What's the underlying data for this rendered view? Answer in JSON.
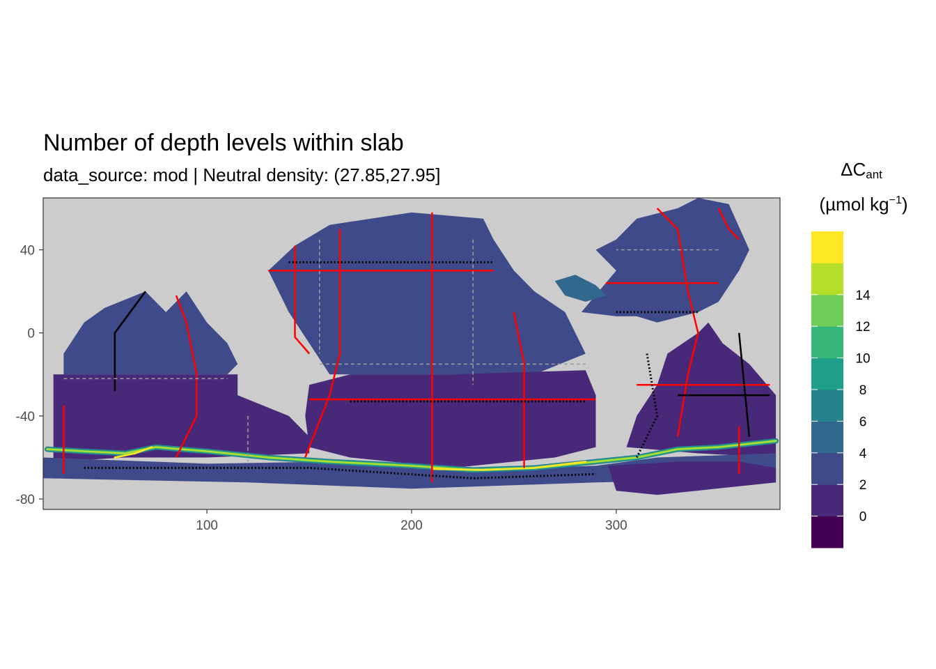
{
  "title": "Number of depth levels within slab",
  "subtitle": "data_source: mod | Neutral density: (27.85,27.95]",
  "legend": {
    "title_main": "ΔC",
    "title_sub": "ant",
    "unit_open": "(µmol kg",
    "unit_sup": "−1",
    "unit_close": ")"
  },
  "colors": {
    "land": "#cccccc",
    "panel_background": "#ffffff",
    "section_red": "#ff0000",
    "section_black": "#000000",
    "section_grey": "#9b9b9b"
  },
  "chart_data": {
    "type": "heatmap",
    "title": "Number of depth levels within slab",
    "subtitle": "data_source: mod | Neutral density: (27.85,27.95]",
    "x_axis": {
      "ticks": [
        100,
        200,
        300
      ],
      "range": [
        20,
        380
      ]
    },
    "y_axis": {
      "ticks": [
        40,
        0,
        -40,
        -80
      ],
      "range": [
        -85,
        65
      ]
    },
    "color_scale": {
      "palette": "viridis",
      "tick_labels": [
        "0",
        "2",
        "4",
        "6",
        "8",
        "10",
        "12",
        "14"
      ],
      "bins": [
        {
          "lower": -2,
          "upper": 0,
          "color": "#440154"
        },
        {
          "lower": 0,
          "upper": 2,
          "color": "#482878"
        },
        {
          "lower": 2,
          "upper": 4,
          "color": "#3e4a89"
        },
        {
          "lower": 4,
          "upper": 6,
          "color": "#31688e"
        },
        {
          "lower": 6,
          "upper": 8,
          "color": "#26828e"
        },
        {
          "lower": 8,
          "upper": 10,
          "color": "#1f9e89"
        },
        {
          "lower": 10,
          "upper": 12,
          "color": "#35b779"
        },
        {
          "lower": 12,
          "upper": 14,
          "color": "#6ece58"
        },
        {
          "lower": 14,
          "upper": 16,
          "color": "#b5de2b"
        },
        {
          "lower": 16,
          "upper": 18,
          "color": "#fde725"
        }
      ]
    },
    "regions": [
      {
        "name": "north-pacific",
        "color": "#3e4a89",
        "poly": [
          [
            143,
            42
          ],
          [
            160,
            52
          ],
          [
            200,
            58
          ],
          [
            235,
            55
          ],
          [
            240,
            45
          ],
          [
            250,
            30
          ],
          [
            260,
            20
          ],
          [
            275,
            10
          ],
          [
            280,
            0
          ],
          [
            285,
            -10
          ],
          [
            260,
            -20
          ],
          [
            200,
            -20
          ],
          [
            160,
            -20
          ],
          [
            150,
            -5
          ],
          [
            140,
            10
          ],
          [
            130,
            30
          ]
        ]
      },
      {
        "name": "south-pacific",
        "color": "#482878",
        "poly": [
          [
            150,
            -25
          ],
          [
            170,
            -20
          ],
          [
            220,
            -20
          ],
          [
            285,
            -18
          ],
          [
            290,
            -30
          ],
          [
            290,
            -55
          ],
          [
            270,
            -60
          ],
          [
            220,
            -65
          ],
          [
            170,
            -60
          ],
          [
            150,
            -55
          ],
          [
            148,
            -40
          ]
        ]
      },
      {
        "name": "indian-north",
        "color": "#3e4a89",
        "poly": [
          [
            30,
            -10
          ],
          [
            40,
            5
          ],
          [
            50,
            12
          ],
          [
            70,
            20
          ],
          [
            80,
            10
          ],
          [
            90,
            20
          ],
          [
            100,
            5
          ],
          [
            110,
            -5
          ],
          [
            115,
            -15
          ],
          [
            110,
            -20
          ],
          [
            60,
            -20
          ],
          [
            30,
            -20
          ]
        ]
      },
      {
        "name": "indian-south",
        "color": "#482878",
        "poly": [
          [
            25,
            -20
          ],
          [
            115,
            -20
          ],
          [
            115,
            -30
          ],
          [
            140,
            -40
          ],
          [
            150,
            -50
          ],
          [
            150,
            -58
          ],
          [
            100,
            -60
          ],
          [
            60,
            -60
          ],
          [
            25,
            -62
          ]
        ]
      },
      {
        "name": "north-atlantic",
        "color": "#3e4a89",
        "poly": [
          [
            283,
            10
          ],
          [
            300,
            30
          ],
          [
            290,
            40
          ],
          [
            300,
            45
          ],
          [
            310,
            55
          ],
          [
            330,
            60
          ],
          [
            340,
            65
          ],
          [
            355,
            62
          ],
          [
            365,
            40
          ],
          [
            360,
            30
          ],
          [
            350,
            15
          ],
          [
            340,
            10
          ],
          [
            320,
            5
          ],
          [
            310,
            8
          ],
          [
            300,
            8
          ]
        ]
      },
      {
        "name": "caribbean",
        "color": "#31688e",
        "poly": [
          [
            270,
            25
          ],
          [
            280,
            28
          ],
          [
            290,
            23
          ],
          [
            295,
            18
          ],
          [
            285,
            15
          ],
          [
            275,
            18
          ]
        ]
      },
      {
        "name": "south-atlantic",
        "color": "#482878",
        "poly": [
          [
            325,
            -10
          ],
          [
            340,
            0
          ],
          [
            345,
            5
          ],
          [
            352,
            -5
          ],
          [
            365,
            -15
          ],
          [
            378,
            -30
          ],
          [
            378,
            -60
          ],
          [
            340,
            -58
          ],
          [
            305,
            -55
          ],
          [
            310,
            -40
          ],
          [
            320,
            -25
          ]
        ]
      },
      {
        "name": "southern-ocean",
        "color": "#3e4a89",
        "poly": [
          [
            20,
            -60
          ],
          [
            100,
            -63
          ],
          [
            160,
            -62
          ],
          [
            230,
            -66
          ],
          [
            290,
            -64
          ],
          [
            320,
            -60
          ],
          [
            378,
            -58
          ],
          [
            378,
            -70
          ],
          [
            290,
            -72
          ],
          [
            200,
            -75
          ],
          [
            120,
            -72
          ],
          [
            20,
            -70
          ]
        ]
      },
      {
        "name": "weddell",
        "color": "#482878",
        "poly": [
          [
            296,
            -64
          ],
          [
            330,
            -62
          ],
          [
            360,
            -62
          ],
          [
            378,
            -65
          ],
          [
            378,
            -72
          ],
          [
            320,
            -78
          ],
          [
            300,
            -76
          ]
        ]
      }
    ],
    "band": {
      "name": "acc-high-band",
      "points": [
        [
          22,
          -56
        ],
        [
          40,
          -57
        ],
        [
          60,
          -58
        ],
        [
          75,
          -55
        ],
        [
          100,
          -57
        ],
        [
          130,
          -60
        ],
        [
          160,
          -62
        ],
        [
          200,
          -64
        ],
        [
          230,
          -66
        ],
        [
          260,
          -65
        ],
        [
          290,
          -62
        ],
        [
          310,
          -60
        ],
        [
          330,
          -56
        ],
        [
          350,
          -55
        ],
        [
          378,
          -52
        ]
      ],
      "layers": [
        {
          "color": "#26828e",
          "width": 2.6
        },
        {
          "color": "#35b779",
          "width": 1.5
        },
        {
          "color": "#b5de2b",
          "width": 0.8
        }
      ],
      "peak_segments": [
        {
          "color": "#fde725",
          "points": [
            [
              210,
              -65.5
            ],
            [
              235,
              -66
            ],
            [
              260,
              -65
            ],
            [
              285,
              -62
            ]
          ]
        },
        {
          "color": "#fde725",
          "points": [
            [
              55,
              -60
            ],
            [
              65,
              -58
            ],
            [
              73,
              -55
            ]
          ]
        }
      ]
    },
    "sections": [
      {
        "color": "#ff0000",
        "style": "solid",
        "points": [
          [
            210,
            58
          ],
          [
            210,
            -72
          ]
        ]
      },
      {
        "color": "#ff0000",
        "style": "solid",
        "points": [
          [
            165,
            50
          ],
          [
            165,
            -10
          ],
          [
            160,
            -30
          ],
          [
            148,
            -60
          ]
        ]
      },
      {
        "color": "#ff0000",
        "style": "solid",
        "points": [
          [
            150,
            -32
          ],
          [
            210,
            -32
          ],
          [
            290,
            -32
          ]
        ]
      },
      {
        "color": "#ff0000",
        "style": "solid",
        "points": [
          [
            130,
            30
          ],
          [
            200,
            30
          ],
          [
            240,
            30
          ]
        ]
      },
      {
        "color": "#ff0000",
        "style": "solid",
        "points": [
          [
            250,
            10
          ],
          [
            255,
            -15
          ],
          [
            255,
            -65
          ]
        ]
      },
      {
        "color": "#ff0000",
        "style": "solid",
        "points": [
          [
            85,
            18
          ],
          [
            90,
            5
          ],
          [
            95,
            -20
          ],
          [
            95,
            -40
          ],
          [
            85,
            -60
          ]
        ]
      },
      {
        "color": "#ff0000",
        "style": "solid",
        "points": [
          [
            30,
            -35
          ],
          [
            30,
            -68
          ]
        ]
      },
      {
        "color": "#ff0000",
        "style": "solid",
        "points": [
          [
            320,
            60
          ],
          [
            330,
            50
          ],
          [
            335,
            20
          ],
          [
            340,
            0
          ],
          [
            335,
            -20
          ],
          [
            330,
            -50
          ]
        ]
      },
      {
        "color": "#ff0000",
        "style": "solid",
        "points": [
          [
            295,
            24
          ],
          [
            330,
            24
          ],
          [
            350,
            24
          ]
        ]
      },
      {
        "color": "#ff0000",
        "style": "solid",
        "points": [
          [
            310,
            -25
          ],
          [
            340,
            -25
          ],
          [
            375,
            -25
          ]
        ]
      },
      {
        "color": "#ff0000",
        "style": "solid",
        "points": [
          [
            360,
            -45
          ],
          [
            360,
            -68
          ]
        ]
      },
      {
        "color": "#ff0000",
        "style": "solid",
        "points": [
          [
            350,
            60
          ],
          [
            355,
            50
          ],
          [
            360,
            45
          ]
        ]
      },
      {
        "color": "#ff0000",
        "style": "solid",
        "points": [
          [
            143,
            42
          ],
          [
            143,
            -2
          ],
          [
            150,
            -10
          ]
        ]
      },
      {
        "color": "#000000",
        "style": "dotted",
        "points": [
          [
            140,
            34
          ],
          [
            240,
            34
          ]
        ]
      },
      {
        "color": "#000000",
        "style": "dotted",
        "points": [
          [
            40,
            -65
          ],
          [
            150,
            -65
          ],
          [
            230,
            -70
          ],
          [
            290,
            -68
          ]
        ]
      },
      {
        "color": "#000000",
        "style": "dotted",
        "points": [
          [
            170,
            -33
          ],
          [
            285,
            -33
          ]
        ]
      },
      {
        "color": "#000000",
        "style": "solid",
        "points": [
          [
            330,
            -30
          ],
          [
            375,
            -30
          ]
        ]
      },
      {
        "color": "#000000",
        "style": "solid",
        "points": [
          [
            70,
            20
          ],
          [
            55,
            0
          ],
          [
            55,
            -28
          ]
        ]
      },
      {
        "color": "#000000",
        "style": "solid",
        "points": [
          [
            360,
            0
          ],
          [
            362,
            -20
          ],
          [
            365,
            -50
          ]
        ]
      },
      {
        "color": "#000000",
        "style": "dotted",
        "points": [
          [
            300,
            10
          ],
          [
            340,
            10
          ]
        ]
      },
      {
        "color": "#000000",
        "style": "dotted",
        "points": [
          [
            315,
            -10
          ],
          [
            320,
            -40
          ],
          [
            310,
            -60
          ]
        ]
      },
      {
        "color": "#9b9b9b",
        "style": "dashed",
        "points": [
          [
            155,
            -15
          ],
          [
            250,
            -15
          ],
          [
            285,
            -15
          ]
        ]
      },
      {
        "color": "#9b9b9b",
        "style": "dashed",
        "points": [
          [
            30,
            -22
          ],
          [
            110,
            -22
          ]
        ]
      },
      {
        "color": "#9b9b9b",
        "style": "dashed",
        "points": [
          [
            155,
            45
          ],
          [
            155,
            -10
          ]
        ]
      },
      {
        "color": "#9b9b9b",
        "style": "dashed",
        "points": [
          [
            230,
            45
          ],
          [
            230,
            -25
          ]
        ]
      },
      {
        "color": "#9b9b9b",
        "style": "dashed",
        "points": [
          [
            120,
            -40
          ],
          [
            120,
            -62
          ]
        ]
      },
      {
        "color": "#9b9b9b",
        "style": "dashed",
        "points": [
          [
            350,
            40
          ],
          [
            330,
            40
          ],
          [
            300,
            40
          ]
        ]
      }
    ]
  }
}
